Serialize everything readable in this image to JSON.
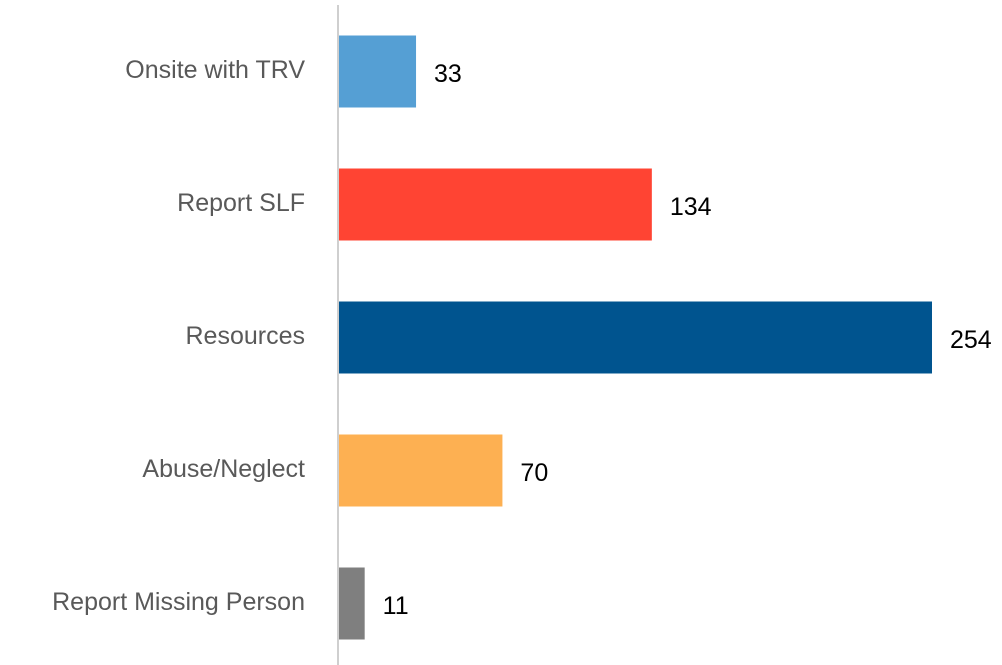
{
  "chart_data": {
    "type": "bar",
    "orientation": "horizontal",
    "categories": [
      "Onsite with TRV",
      "Report SLF",
      "Resources",
      "Abuse/Neglect",
      "Report Missing Person"
    ],
    "values": [
      33,
      134,
      254,
      70,
      11
    ],
    "colors": [
      "#559fd4",
      "#ff4433",
      "#00548f",
      "#fdb052",
      "#7f7f7f"
    ]
  }
}
